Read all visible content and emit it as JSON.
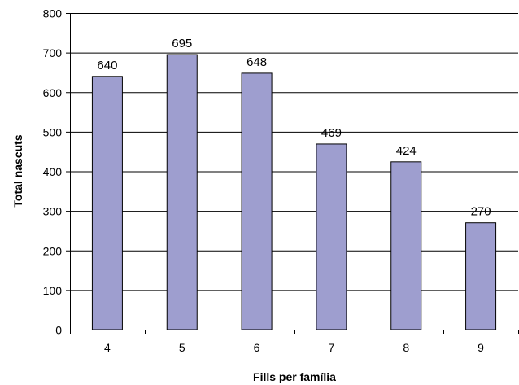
{
  "chart_data": {
    "type": "bar",
    "categories": [
      "4",
      "5",
      "6",
      "7",
      "8",
      "9"
    ],
    "values": [
      640,
      695,
      648,
      469,
      424,
      270
    ],
    "data_labels": [
      "640",
      "695",
      "648",
      "469",
      "424",
      "270"
    ],
    "xlabel": "Fills per família",
    "ylabel": "Total nascuts",
    "ylim": [
      0,
      800
    ],
    "yticks": [
      "0",
      "100",
      "200",
      "300",
      "400",
      "500",
      "600",
      "700",
      "800"
    ],
    "grid": true,
    "legend": "none",
    "colors": {
      "bar_fill": "#9e9ecf",
      "bar_stroke": "#000000",
      "grid": "#000000",
      "axis": "#000000"
    }
  }
}
